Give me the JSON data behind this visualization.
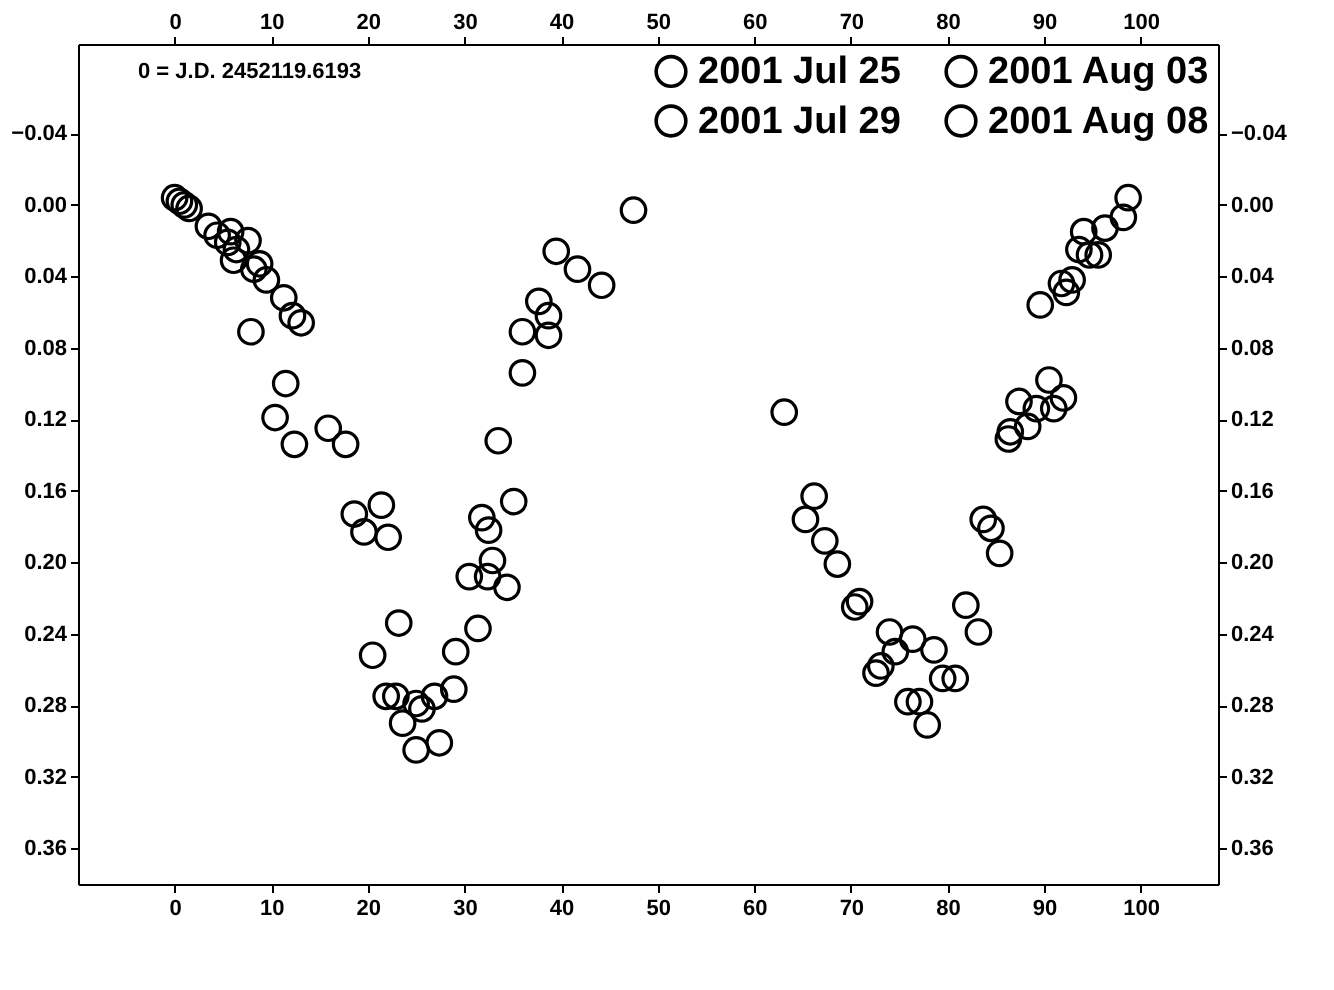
{
  "chart_data": {
    "type": "scatter",
    "annotations": [
      "0 = J.D. 2452119.6193"
    ],
    "xlim": [
      -10,
      108
    ],
    "xticks": [
      0,
      10,
      20,
      30,
      40,
      50,
      60,
      70,
      80,
      90,
      100
    ],
    "x2lim": [
      -10,
      108
    ],
    "x2ticks": [
      0,
      10,
      20,
      30,
      40,
      50,
      60,
      70,
      80,
      90,
      100
    ],
    "ylim": [
      0.38,
      -0.09
    ],
    "yticks": [
      -0.04,
      {
        "value": 0,
        "label": "0.00"
      },
      0.04,
      0.08,
      0.12,
      0.16,
      {
        "value": 0.2,
        "label": "0.20"
      },
      0.24,
      0.28,
      0.32,
      0.36
    ],
    "y2lim": [
      0.38,
      -0.09
    ],
    "y2ticks": [
      -0.04,
      {
        "value": 0,
        "label": "0.00"
      },
      0.04,
      0.08,
      0.12,
      0.16,
      {
        "value": 0.2,
        "label": "0.20"
      },
      0.24,
      0.28,
      0.32,
      0.36
    ],
    "grid": false,
    "legend": "top right",
    "marker": "circle",
    "series": [
      {
        "name": "2001 Jul 25",
        "color": "#000000",
        "x": [
          63.1,
          66.2,
          65.3,
          67.3,
          68.6,
          70.9,
          70.4,
          74.0,
          74.6,
          76.4,
          78.6,
          72.6,
          73.1,
          79.5,
          80.8,
          75.9,
          77.1,
          77.9,
          81.9,
          83.2,
          83.7,
          84.5,
          85.4,
          90.5,
          92.0,
          91.0,
          89.2,
          87.4,
          88.3,
          86.5,
          86.3
        ],
        "values": [
          0.116,
          0.163,
          0.176,
          0.188,
          0.201,
          0.222,
          0.225,
          0.239,
          0.25,
          0.243,
          0.249,
          0.262,
          0.258,
          0.265,
          0.265,
          0.278,
          0.278,
          0.291,
          0.224,
          0.239,
          0.176,
          0.181,
          0.195,
          0.098,
          0.108,
          0.114,
          0.114,
          0.11,
          0.124,
          0.127,
          0.131
        ]
      },
      {
        "name": "2001 Jul 29",
        "color": "#000000",
        "x": [
          0.0,
          0.5,
          1.0,
          1.5,
          3.5,
          4.4,
          5.8,
          5.5,
          6.4,
          6.1,
          7.6,
          8.2,
          8.8,
          9.5,
          11.3,
          12.2,
          13.1,
          98.7,
          98.2,
          96.3,
          94.1,
          93.6,
          95.6,
          94.7,
          92.9,
          91.8,
          92.3,
          89.6
        ],
        "values": [
          -0.004,
          -0.002,
          0.0,
          0.002,
          0.012,
          0.017,
          0.015,
          0.021,
          0.025,
          0.031,
          0.02,
          0.036,
          0.033,
          0.042,
          0.052,
          0.062,
          0.066,
          -0.004,
          0.007,
          0.013,
          0.015,
          0.025,
          0.028,
          0.028,
          0.042,
          0.044,
          0.049,
          0.056
        ]
      },
      {
        "name": "2001 Aug 03",
        "color": "#000000",
        "x": [
          7.9,
          11.5,
          10.4,
          12.4,
          15.9,
          17.7,
          33.5,
          36.0,
          38.7,
          18.6,
          21.4,
          22.1,
          23.2,
          31.8,
          30.5,
          29.1,
          27.4,
          21.9
        ],
        "values": [
          0.071,
          0.1,
          0.119,
          0.134,
          0.125,
          0.134,
          0.132,
          0.071,
          0.062,
          0.173,
          0.168,
          0.186,
          0.234,
          0.175,
          0.208,
          0.25,
          0.301,
          0.275
        ]
      },
      {
        "name": "2001 Aug 08",
        "color": "#000000",
        "x": [
          47.5,
          39.5,
          41.7,
          44.2,
          36.0,
          37.7,
          38.7,
          19.6,
          35.1,
          32.5,
          32.9,
          32.4,
          34.4,
          31.4,
          20.5,
          22.9,
          28.9,
          26.9,
          25.0,
          25.6,
          23.6,
          25.0
        ],
        "values": [
          0.003,
          0.026,
          0.036,
          0.045,
          0.094,
          0.054,
          0.073,
          0.183,
          0.166,
          0.182,
          0.199,
          0.208,
          0.214,
          0.237,
          0.252,
          0.275,
          0.271,
          0.275,
          0.279,
          0.282,
          0.29,
          0.305
        ]
      }
    ]
  }
}
